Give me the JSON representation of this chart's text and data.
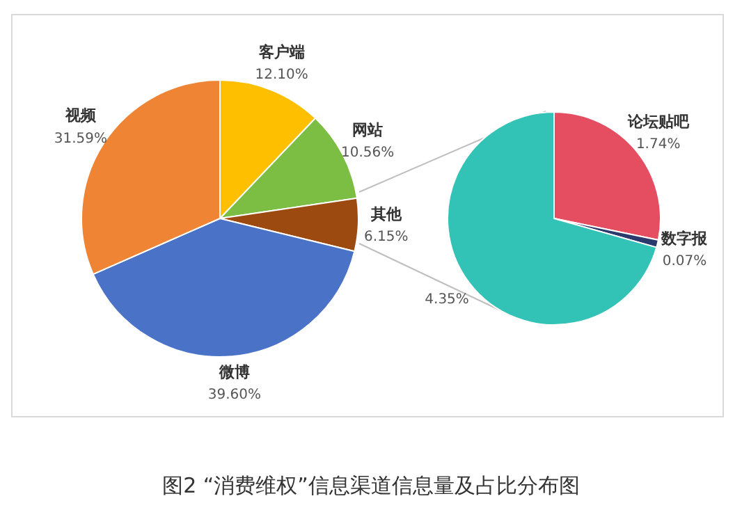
{
  "chart_data": [
    {
      "type": "pie",
      "title": "图2 “消费维权”信息渠道信息量及占比分布图",
      "categories": [
        "客户端",
        "网站",
        "其他",
        "微博",
        "视频"
      ],
      "values": [
        12.1,
        10.56,
        6.15,
        39.6,
        31.59
      ],
      "colors": [
        "#fdbf00",
        "#7cbd43",
        "#9c4a10",
        "#4a73c8",
        "#ef8534"
      ],
      "value_labels": [
        "12.10%",
        "10.56%",
        "6.15%",
        "39.60%",
        "31.59%"
      ]
    },
    {
      "type": "pie",
      "categories": [
        "论坛贴吧",
        "数字报",
        null
      ],
      "values": [
        1.74,
        0.07,
        4.35
      ],
      "colors": [
        "#e44e60",
        "#2b3a6d",
        "#32c2b6"
      ],
      "value_labels": [
        "1.74%",
        "0.07%",
        "4.35%"
      ]
    }
  ]
}
